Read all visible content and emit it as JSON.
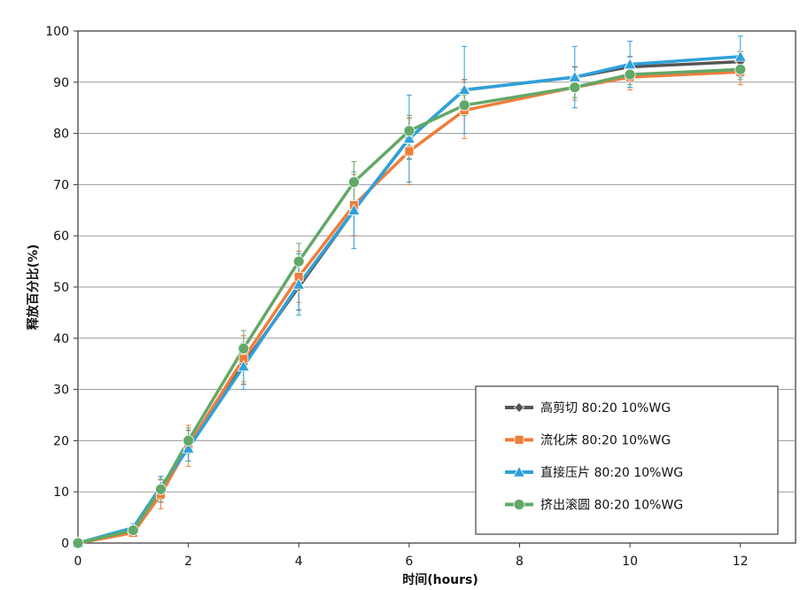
{
  "chart_data": {
    "type": "line",
    "xlabel": "时间(hours)",
    "ylabel": "释放百分比(%)",
    "xlim": [
      0,
      13
    ],
    "ylim": [
      0,
      100
    ],
    "x_ticks": [
      0,
      2,
      4,
      6,
      8,
      10,
      12
    ],
    "y_ticks": [
      0,
      10,
      20,
      30,
      40,
      50,
      60,
      70,
      80,
      90,
      100
    ],
    "grid": true,
    "legend_position": "bottom-right",
    "x": [
      0,
      1,
      1.5,
      2,
      3,
      4,
      5,
      6,
      7,
      9,
      10,
      12
    ],
    "series": [
      {
        "name": "高剪切 80:20 10%WG",
        "color": "#555555",
        "marker": "diamond",
        "values": [
          0,
          2.5,
          10.5,
          19,
          35,
          50,
          65,
          79,
          88.5,
          91,
          93,
          94
        ],
        "errors": [
          0,
          0.8,
          2.5,
          3,
          4,
          4.5,
          5,
          4,
          2,
          2,
          2,
          2
        ]
      },
      {
        "name": "流化床 80:20 10%WG",
        "color": "#f07d3b",
        "marker": "square",
        "values": [
          0,
          2,
          9.5,
          19,
          36,
          52,
          66,
          76.5,
          84.5,
          89,
          91,
          92
        ],
        "errors": [
          0,
          0.8,
          2.8,
          4,
          4.5,
          5,
          6,
          6.5,
          5.5,
          2.5,
          2.5,
          2.5
        ]
      },
      {
        "name": "直接压片 80:20 10%WG",
        "color": "#2fa1db",
        "marker": "triangle",
        "values": [
          0,
          3,
          11,
          18.5,
          34.5,
          50.5,
          65,
          79,
          88.5,
          91,
          93.5,
          95
        ],
        "errors": [
          0,
          0.8,
          2,
          2.5,
          4.5,
          6,
          7.5,
          8.5,
          8.5,
          6,
          4.5,
          4
        ]
      },
      {
        "name": "挤出滚圆 80:20 10%WG",
        "color": "#62a868",
        "marker": "circle",
        "values": [
          0,
          2.5,
          10.5,
          20,
          38,
          55,
          70.5,
          80.5,
          85.5,
          89,
          91.5,
          92.5
        ],
        "errors": [
          0,
          0.8,
          2,
          2.5,
          3.5,
          3.5,
          4,
          3,
          2,
          2,
          2,
          2
        ]
      }
    ]
  }
}
